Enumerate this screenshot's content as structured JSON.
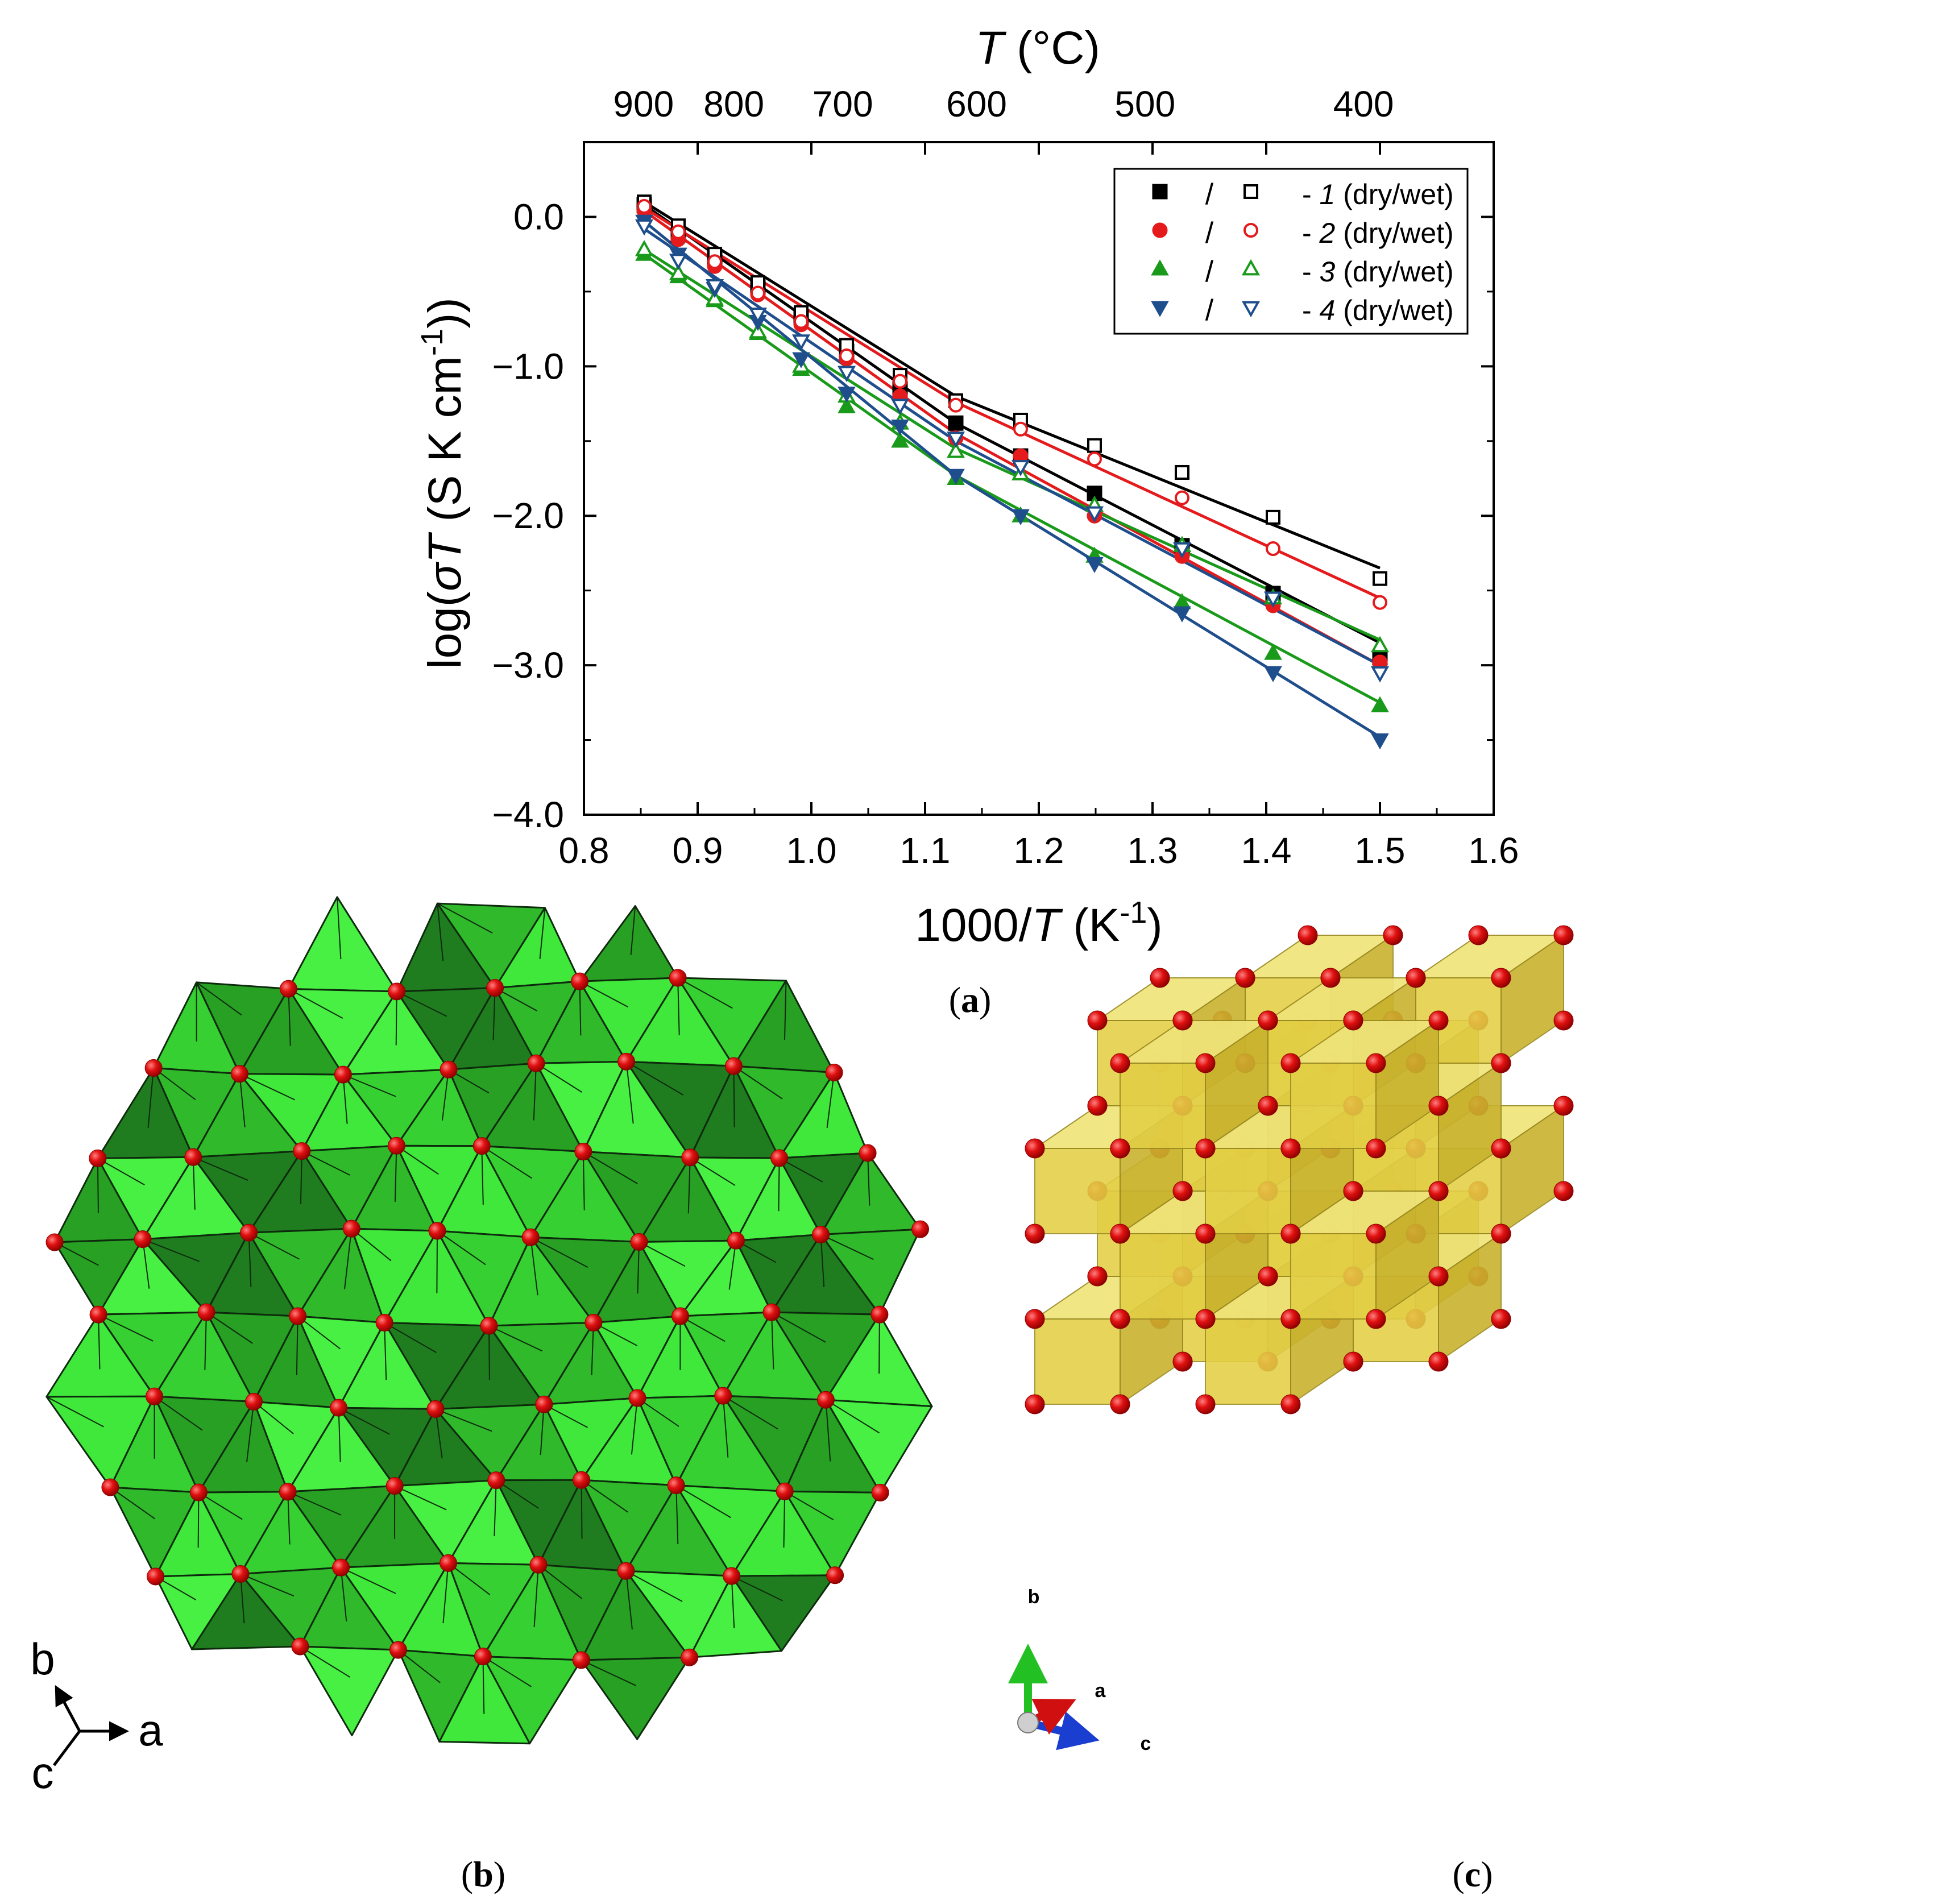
{
  "chart_data": {
    "type": "scatter",
    "subtype": "arrhenius-plot-with-linear-fits",
    "xlabel": "1000/T (K⁻¹)",
    "ylabel": "log(σT (S K cm⁻¹))",
    "top_axis_label": "T (°C)",
    "xlim": [
      0.8,
      1.6
    ],
    "ylim": [
      -4.0,
      0.5
    ],
    "x_ticks": [
      "0.8",
      "0.9",
      "1.0",
      "1.1",
      "1.2",
      "1.3",
      "1.4",
      "1.5",
      "1.6"
    ],
    "y_ticks": [
      "0.0",
      "−1.0",
      "−2.0",
      "−3.0",
      "−4.0"
    ],
    "top_ticks": [
      "900",
      "800",
      "700",
      "600",
      "500",
      "400"
    ],
    "legend_position": "top-right",
    "legend": [
      {
        "num": "1",
        "suffix": "(dry/wet)"
      },
      {
        "num": "2",
        "suffix": "(dry/wet)"
      },
      {
        "num": "3",
        "suffix": "(dry/wet)"
      },
      {
        "num": "4",
        "suffix": "(dry/wet)"
      }
    ],
    "legend_sep": "/",
    "legend_dash": "-",
    "x": [
      0.853,
      0.883,
      0.915,
      0.953,
      0.991,
      1.031,
      1.078,
      1.127,
      1.184,
      1.249,
      1.326,
      1.406,
      1.5
    ],
    "series": [
      {
        "name": "1 dry",
        "marker": "square",
        "filled": true,
        "color": "#000000",
        "values": [
          0.08,
          -0.12,
          -0.28,
          -0.47,
          -0.67,
          -0.9,
          -1.15,
          -1.38,
          -1.6,
          -1.85,
          -2.2,
          -2.52,
          -2.95
        ],
        "fit": [
          [
            0.853,
            0.08
          ],
          [
            1.127,
            -1.38
          ],
          [
            1.5,
            -2.85
          ]
        ]
      },
      {
        "name": "1 wet",
        "marker": "square",
        "filled": false,
        "color": "#000000",
        "values": [
          0.1,
          -0.06,
          -0.25,
          -0.44,
          -0.64,
          -0.86,
          -1.06,
          -1.23,
          -1.36,
          -1.53,
          -1.71,
          -2.01,
          -2.42
        ],
        "fit": [
          [
            0.853,
            0.1
          ],
          [
            1.127,
            -1.2
          ],
          [
            1.5,
            -2.35
          ]
        ]
      },
      {
        "name": "2 dry",
        "marker": "circle",
        "filled": true,
        "color": "#e41a1c",
        "values": [
          0.04,
          -0.15,
          -0.33,
          -0.52,
          -0.72,
          -0.95,
          -1.2,
          -1.48,
          -1.6,
          -2.0,
          -2.27,
          -2.6,
          -2.98
        ],
        "fit": [
          [
            0.853,
            0.04
          ],
          [
            1.127,
            -1.45
          ],
          [
            1.5,
            -3.0
          ]
        ]
      },
      {
        "name": "2 wet",
        "marker": "circle",
        "filled": false,
        "color": "#e41a1c",
        "values": [
          0.07,
          -0.1,
          -0.3,
          -0.51,
          -0.7,
          -0.93,
          -1.1,
          -1.26,
          -1.42,
          -1.62,
          -1.88,
          -2.22,
          -2.58
        ],
        "fit": [
          [
            0.853,
            0.06
          ],
          [
            1.127,
            -1.24
          ],
          [
            1.5,
            -2.55
          ]
        ]
      },
      {
        "name": "3 dry",
        "marker": "triangle-up",
        "filled": true,
        "color": "#1a9a1a",
        "values": [
          -0.25,
          -0.4,
          -0.56,
          -0.78,
          -1.02,
          -1.27,
          -1.5,
          -1.75,
          -2.0,
          -2.27,
          -2.58,
          -2.92,
          -3.27
        ],
        "fit": [
          [
            0.853,
            -0.25
          ],
          [
            1.127,
            -1.73
          ],
          [
            1.5,
            -3.25
          ]
        ]
      },
      {
        "name": "3 wet",
        "marker": "triangle-up",
        "filled": false,
        "color": "#1a9a1a",
        "values": [
          -0.22,
          -0.38,
          -0.55,
          -0.77,
          -1.0,
          -1.2,
          -1.38,
          -1.57,
          -1.72,
          -1.93,
          -2.2,
          -2.55,
          -2.87
        ],
        "fit": [
          [
            0.853,
            -0.22
          ],
          [
            1.127,
            -1.55
          ],
          [
            1.5,
            -2.83
          ]
        ]
      },
      {
        "name": "4 dry",
        "marker": "triangle-down",
        "filled": true,
        "color": "#1f4e8c",
        "values": [
          -0.03,
          -0.25,
          -0.48,
          -0.7,
          -0.95,
          -1.18,
          -1.4,
          -1.73,
          -2.0,
          -2.32,
          -2.65,
          -3.05,
          -3.5
        ],
        "fit": [
          [
            0.853,
            -0.03
          ],
          [
            1.127,
            -1.73
          ],
          [
            1.5,
            -3.48
          ]
        ]
      },
      {
        "name": "4 wet",
        "marker": "triangle-down",
        "filled": false,
        "color": "#1f4e8c",
        "values": [
          -0.06,
          -0.29,
          -0.46,
          -0.65,
          -0.83,
          -1.04,
          -1.26,
          -1.48,
          -1.67,
          -1.98,
          -2.22,
          -2.55,
          -3.05
        ],
        "fit": [
          [
            0.853,
            -0.08
          ],
          [
            1.127,
            -1.5
          ],
          [
            1.5,
            -3.0
          ]
        ]
      }
    ]
  },
  "panels": {
    "a": {
      "label": "a"
    },
    "b": {
      "label": "b",
      "axes": {
        "x": "a",
        "y": "b",
        "z": "c"
      }
    },
    "c": {
      "label": "c",
      "axes": {
        "y": "b",
        "x": "a",
        "z": "c"
      }
    }
  },
  "colors": {
    "green_light": "#3fe83a",
    "green_dark": "#1f7d1f",
    "oxygen_red": "#e01010",
    "cube_yellow": "#e8d84a"
  }
}
